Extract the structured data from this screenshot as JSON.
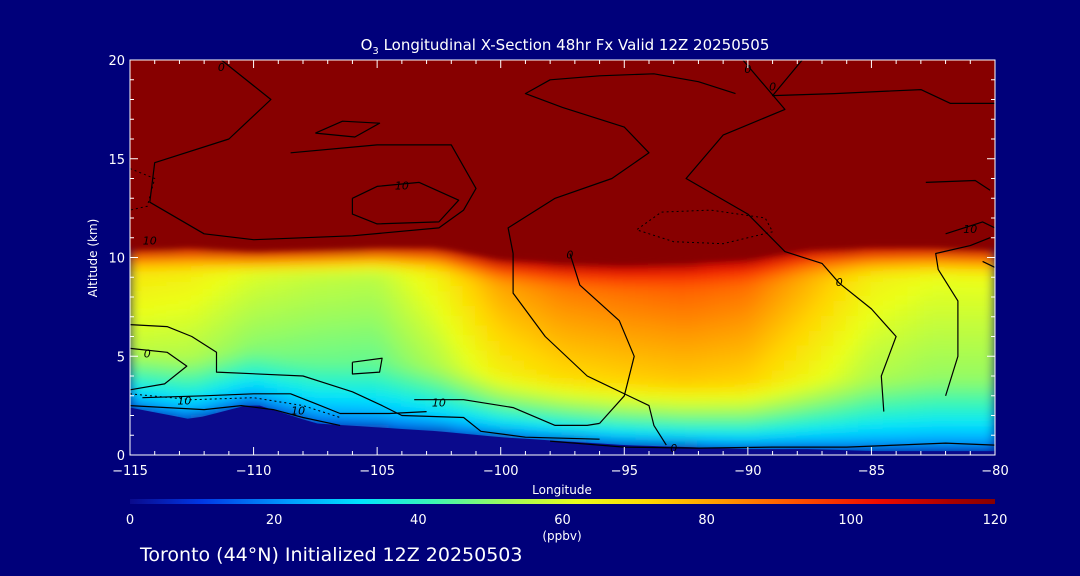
{
  "chart_data": {
    "type": "heatmap",
    "title": {
      "main": "O",
      "subscript": "3",
      "rest": " Longitudinal X-Section 48hr  Fx Valid 12Z 20250505"
    },
    "xlabel": "Longitude",
    "ylabel": "Altitude (km)",
    "xlim": [
      -115,
      -80
    ],
    "ylim": [
      0,
      20
    ],
    "x_ticks": [
      -115,
      -110,
      -105,
      -100,
      -95,
      -90,
      -85,
      -80
    ],
    "x_tick_labels": [
      "−115",
      "−110",
      "−105",
      "−100",
      "−95",
      "−90",
      "−85",
      "−80"
    ],
    "y_ticks": [
      0,
      5,
      10,
      15,
      20
    ],
    "y_tick_labels": [
      "0",
      "5",
      "10",
      "15",
      "20"
    ],
    "colorbar": {
      "range": [
        0,
        120
      ],
      "ticks": [
        0,
        20,
        40,
        60,
        80,
        100,
        120
      ],
      "tick_labels": [
        "0",
        "20",
        "40",
        "60",
        "80",
        "100",
        "120"
      ],
      "label": "(ppbv)",
      "stops": [
        {
          "v": 0,
          "c": "#0a0a8c"
        },
        {
          "v": 10,
          "c": "#0038e6"
        },
        {
          "v": 22,
          "c": "#009cff"
        },
        {
          "v": 32,
          "c": "#00e5ff"
        },
        {
          "v": 42,
          "c": "#3cf7b4"
        },
        {
          "v": 52,
          "c": "#9dfb5c"
        },
        {
          "v": 62,
          "c": "#ebff1a"
        },
        {
          "v": 72,
          "c": "#ffd700"
        },
        {
          "v": 82,
          "c": "#ff9a00"
        },
        {
          "v": 92,
          "c": "#ff5500"
        },
        {
          "v": 104,
          "c": "#ee0a00"
        },
        {
          "v": 114,
          "c": "#a80000"
        },
        {
          "v": 120,
          "c": "#870000"
        }
      ]
    },
    "ozone_field": {
      "longitudes": [
        -115,
        -112.5,
        -110,
        -107.5,
        -105,
        -102.5,
        -100,
        -97.5,
        -95,
        -92.5,
        -90,
        -87.5,
        -85,
        -82.5,
        -80
      ],
      "tropopause_km": [
        10.3,
        10.4,
        10.2,
        10.3,
        10.4,
        10.4,
        9.8,
        9.6,
        9.5,
        9.6,
        9.8,
        10.3,
        10.4,
        10.4,
        10.3
      ],
      "surface_km": [
        2.4,
        1.8,
        2.6,
        1.6,
        1.4,
        1.2,
        0.9,
        0.7,
        0.5,
        0.4,
        0.3,
        0.3,
        0.2,
        0.2,
        0.2
      ],
      "mid_troposphere_ppbv": [
        68,
        66,
        60,
        57,
        56,
        66,
        80,
        86,
        88,
        90,
        88,
        78,
        66,
        62,
        62
      ]
    },
    "contour_labels": [
      {
        "text": "0",
        "lon": -111.3,
        "alt": 19.6
      },
      {
        "text": "0",
        "lon": -90.0,
        "alt": 19.5
      },
      {
        "text": "0",
        "lon": -89.0,
        "alt": 18.6
      },
      {
        "text": "10",
        "lon": -104.0,
        "alt": 13.6
      },
      {
        "text": "10",
        "lon": -114.2,
        "alt": 10.8
      },
      {
        "text": "10",
        "lon": -81.0,
        "alt": 11.4
      },
      {
        "text": "0",
        "lon": -97.2,
        "alt": 10.1
      },
      {
        "text": "0",
        "lon": -86.3,
        "alt": 8.7
      },
      {
        "text": "0",
        "lon": -114.3,
        "alt": 5.1
      },
      {
        "text": "10",
        "lon": -112.8,
        "alt": 2.7
      },
      {
        "text": "10",
        "lon": -108.2,
        "alt": 2.2
      },
      {
        "text": "10",
        "lon": -102.5,
        "alt": 2.6
      },
      {
        "text": "0",
        "lon": -93.0,
        "alt": 0.3
      }
    ],
    "footer": "Toronto (44°N) Initialized 12Z 20250503"
  }
}
